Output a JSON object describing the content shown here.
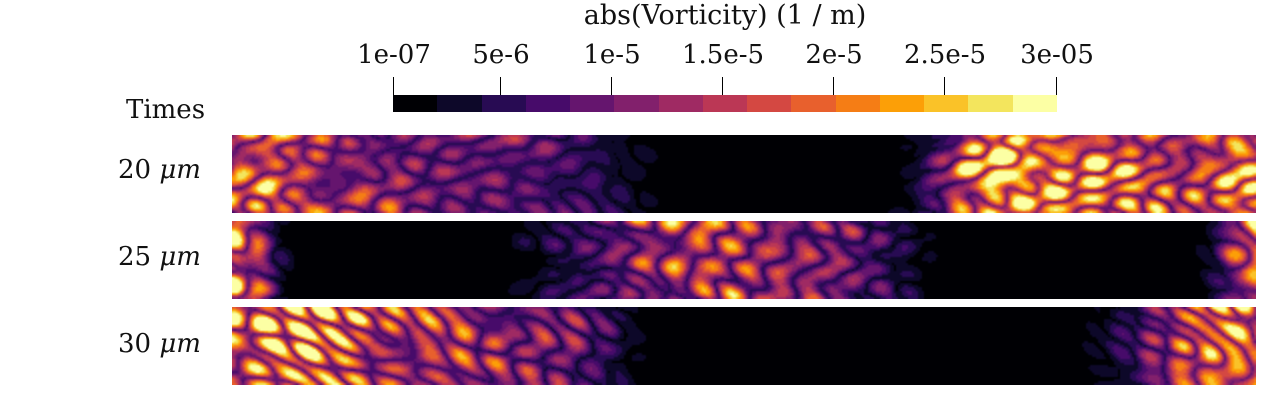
{
  "chart_data": {
    "type": "heatmap",
    "colorbar": {
      "title": "abs(Vorticity) (1 / m)",
      "tick_labels": [
        "1e-07",
        "5e-6",
        "1e-5",
        "1.5e-5",
        "2e-5",
        "2.5e-5",
        "3e-05"
      ],
      "tick_values": [
        1e-07,
        5e-06,
        1e-05,
        1.5e-05,
        2e-05,
        2.5e-05,
        3e-05
      ],
      "range": [
        1e-07,
        3e-05
      ],
      "colormap": "inferno",
      "levels": 15
    },
    "row_header": "Times",
    "rows": [
      {
        "label": "20",
        "unit": "μm"
      },
      {
        "label": "25",
        "unit": "μm"
      },
      {
        "label": "30",
        "unit": "μm"
      }
    ]
  },
  "colors": {
    "bands": [
      "#000004",
      "#0d0829",
      "#280b53",
      "#470b6a",
      "#65156e",
      "#82206c",
      "#9f2a63",
      "#bb3755",
      "#d44842",
      "#e8602d",
      "#f57d15",
      "#fc9f07",
      "#fac228",
      "#f3e55d",
      "#fcffa4"
    ]
  }
}
